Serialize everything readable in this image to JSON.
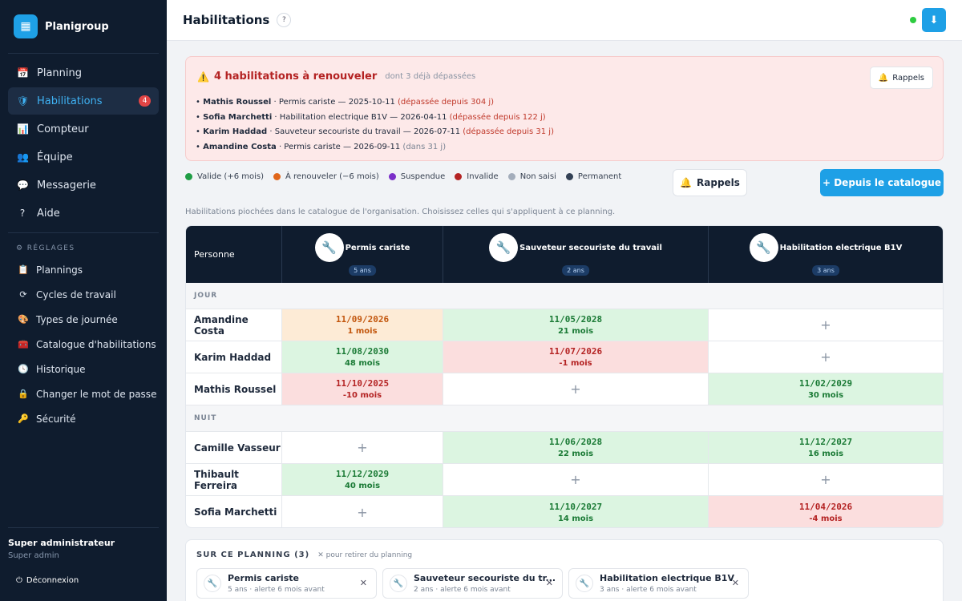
{
  "app": {
    "name": "Planigroup"
  },
  "nav": [
    {
      "label": "Planning",
      "icon": "calendar-icon",
      "glyph": "📅",
      "badge": ""
    },
    {
      "label": "Habilitations",
      "icon": "shield-icon",
      "glyph": "🛡",
      "badge": "4",
      "active": true
    },
    {
      "label": "Compteur",
      "icon": "bar-chart-icon",
      "glyph": "📊",
      "badge": ""
    },
    {
      "label": "Équipe",
      "icon": "team-icon",
      "glyph": "👥",
      "badge": ""
    },
    {
      "label": "Messagerie",
      "icon": "chat-icon",
      "glyph": "💬",
      "badge": ""
    },
    {
      "label": "Aide",
      "icon": "help-icon",
      "glyph": "?",
      "badge": ""
    }
  ],
  "settings": {
    "header": "RÉGLAGES",
    "items": [
      {
        "label": "Plannings",
        "icon": "clipboard-icon",
        "glyph": "📋"
      },
      {
        "label": "Cycles de travail",
        "icon": "cycle-icon",
        "glyph": "⟳"
      },
      {
        "label": "Types de journée",
        "icon": "palette-icon",
        "glyph": "🎨"
      },
      {
        "label": "Catalogue d'habilitations",
        "icon": "catalog-icon",
        "glyph": "🧰"
      },
      {
        "label": "Historique",
        "icon": "clock-icon",
        "glyph": "🕓"
      },
      {
        "label": "Changer le mot de passe",
        "icon": "lock-icon",
        "glyph": "🔒"
      },
      {
        "label": "Sécurité",
        "icon": "key-icon",
        "glyph": "🔑"
      }
    ]
  },
  "user": {
    "name": "Super administrateur",
    "role": "Super admin",
    "logout": "Déconnexion"
  },
  "header": {
    "title": "Habilitations",
    "help": "?"
  },
  "alert": {
    "title": "4 habilitations à renouveler",
    "subtitle": "dont 3 déjà dépassées",
    "rappels": "Rappels",
    "lines": [
      {
        "name": "Mathis Roussel",
        "text": " · Permis cariste — 2025-10-11 ",
        "status": "(dépassée depuis 304 j)",
        "kind": "red"
      },
      {
        "name": "Sofia Marchetti",
        "text": " · Habilitation electrique B1V — 2026-04-11 ",
        "status": "(dépassée depuis 122 j)",
        "kind": "red"
      },
      {
        "name": "Karim Haddad",
        "text": " · Sauveteur secouriste du travail — 2026-07-11 ",
        "status": "(dépassée depuis 31 j)",
        "kind": "red"
      },
      {
        "name": "Amandine Costa",
        "text": " · Permis cariste — 2026-09-11 ",
        "status": "(dans 31 j)",
        "kind": "grey"
      }
    ]
  },
  "legend": [
    {
      "label": "Valide (+6 mois)",
      "color": "#1f9d45"
    },
    {
      "label": "À renouveler (−6 mois)",
      "color": "#e0661a"
    },
    {
      "label": "Suspendue",
      "color": "#7b2fc9"
    },
    {
      "label": "Invalide",
      "color": "#b42323"
    },
    {
      "label": "Non saisi",
      "color": "#a3adbb"
    },
    {
      "label": "Permanent",
      "color": "#334155"
    }
  ],
  "actions": {
    "rappels": "Rappels",
    "catalogue": "+ Depuis le catalogue"
  },
  "hint": "Habilitations piochées dans le catalogue de l'organisation. Choisissez celles qui s'appliquent à ce planning.",
  "matrix": {
    "person_header": "Personne",
    "columns": [
      {
        "name": "Permis cariste",
        "duration": "5 ans"
      },
      {
        "name": "Sauveteur secouriste du travail",
        "duration": "2 ans"
      },
      {
        "name": "Habilitation electrique B1V",
        "duration": "3 ans"
      }
    ],
    "sections": [
      {
        "label": "JOUR",
        "rows": [
          {
            "name": "Amandine Costa",
            "cells": [
              {
                "date": "11/09/2026",
                "months": "1 mois",
                "status": "orange"
              },
              {
                "date": "11/05/2028",
                "months": "21 mois",
                "status": "green"
              },
              {
                "date": "",
                "months": "",
                "status": "empty"
              }
            ]
          },
          {
            "name": "Karim Haddad",
            "cells": [
              {
                "date": "11/08/2030",
                "months": "48 mois",
                "status": "green"
              },
              {
                "date": "11/07/2026",
                "months": "-1 mois",
                "status": "red"
              },
              {
                "date": "",
                "months": "",
                "status": "empty"
              }
            ]
          },
          {
            "name": "Mathis Roussel",
            "cells": [
              {
                "date": "11/10/2025",
                "months": "-10 mois",
                "status": "red"
              },
              {
                "date": "",
                "months": "",
                "status": "empty"
              },
              {
                "date": "11/02/2029",
                "months": "30 mois",
                "status": "green"
              }
            ]
          }
        ]
      },
      {
        "label": "NUIT",
        "rows": [
          {
            "name": "Camille Vasseur",
            "cells": [
              {
                "date": "",
                "months": "",
                "status": "empty"
              },
              {
                "date": "11/06/2028",
                "months": "22 mois",
                "status": "green"
              },
              {
                "date": "11/12/2027",
                "months": "16 mois",
                "status": "green"
              }
            ]
          },
          {
            "name": "Thibault Ferreira",
            "cells": [
              {
                "date": "11/12/2029",
                "months": "40 mois",
                "status": "green"
              },
              {
                "date": "",
                "months": "",
                "status": "empty"
              },
              {
                "date": "",
                "months": "",
                "status": "empty"
              }
            ]
          },
          {
            "name": "Sofia Marchetti",
            "cells": [
              {
                "date": "",
                "months": "",
                "status": "empty"
              },
              {
                "date": "11/10/2027",
                "months": "14 mois",
                "status": "green"
              },
              {
                "date": "11/04/2026",
                "months": "-4 mois",
                "status": "red"
              }
            ]
          }
        ]
      }
    ]
  },
  "on_planning": {
    "title": "SUR CE PLANNING (3)",
    "hint": "✕ pour retirer du planning",
    "chips": [
      {
        "name": "Permis cariste",
        "meta": "5 ans · alerte 6 mois avant"
      },
      {
        "name": "Sauveteur secouriste du tr...",
        "meta": "2 ans · alerte 6 mois avant"
      },
      {
        "name": "Habilitation electrique B1V",
        "meta": "3 ans · alerte 6 mois avant"
      }
    ]
  }
}
